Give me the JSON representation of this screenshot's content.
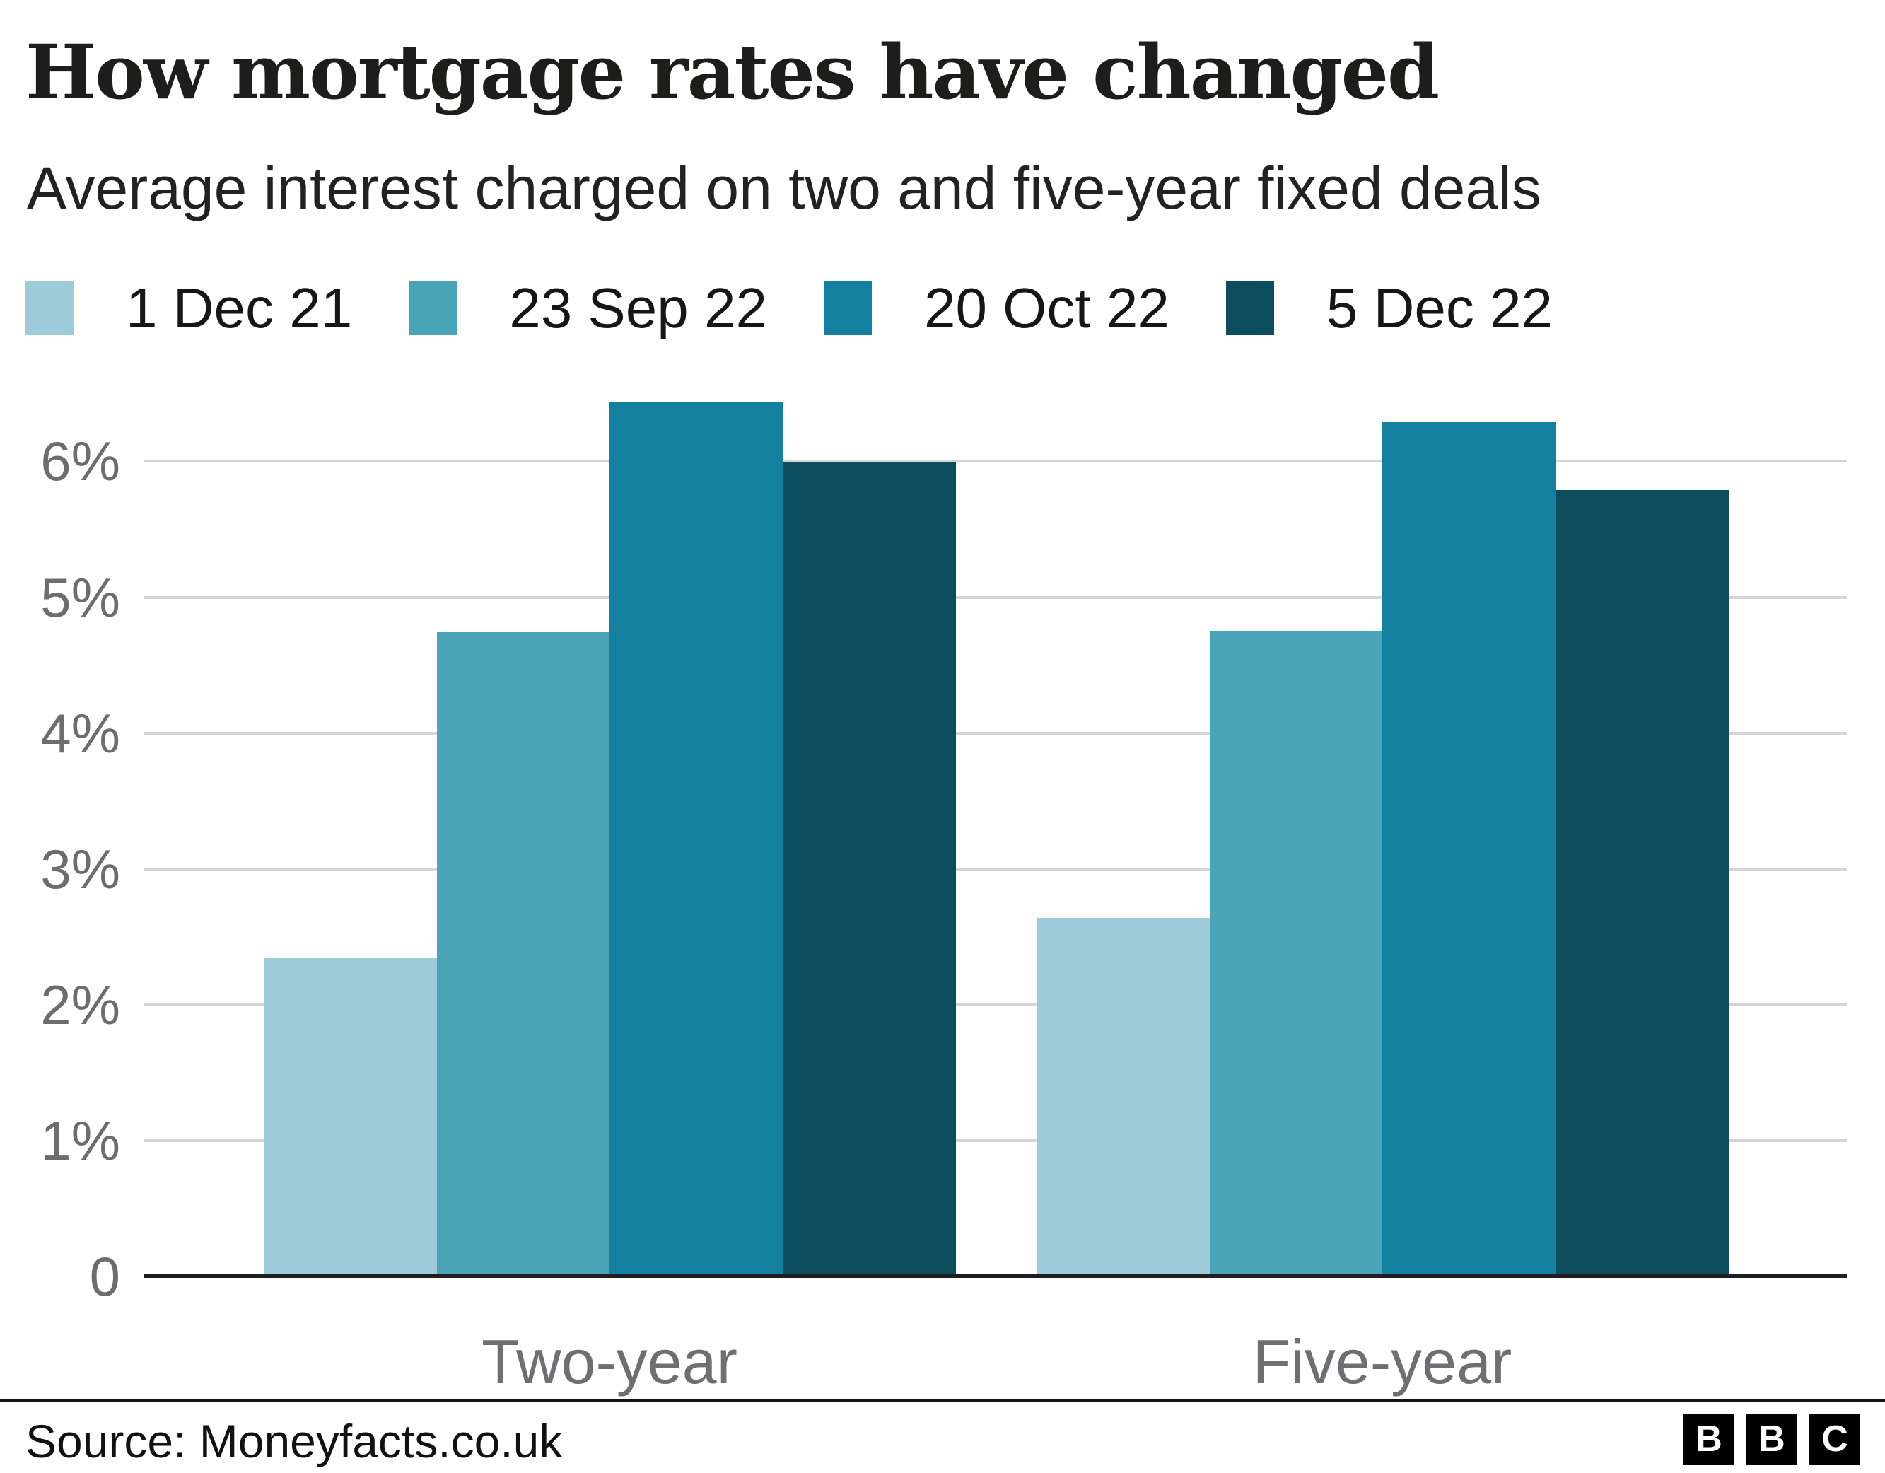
{
  "header": {
    "title": "How mortgage rates have changed",
    "subtitle": "Average interest charged on two and five-year fixed deals"
  },
  "chart_data": {
    "type": "bar",
    "categories": [
      "Two-year",
      "Five-year"
    ],
    "series": [
      {
        "name": "1 Dec 21",
        "color": "#9ecbda",
        "values": [
          2.34,
          2.64
        ]
      },
      {
        "name": "23 Sep 22",
        "color": "#4aa4b7",
        "values": [
          4.74,
          4.75
        ]
      },
      {
        "name": "20 Oct 22",
        "color": "#1380a0",
        "values": [
          6.44,
          6.29
        ]
      },
      {
        "name": "5 Dec 22",
        "color": "#0c4d5e",
        "values": [
          5.99,
          5.79
        ]
      }
    ],
    "y_ticks": [
      {
        "value": 6,
        "label": "6%"
      },
      {
        "value": 5,
        "label": "5%"
      },
      {
        "value": 4,
        "label": "4%"
      },
      {
        "value": 3,
        "label": "3%"
      },
      {
        "value": 2,
        "label": "2%"
      },
      {
        "value": 1,
        "label": "1%"
      },
      {
        "value": 0,
        "label": "0"
      }
    ],
    "ylim": [
      0,
      6.75
    ],
    "ylabel": "",
    "xlabel": "",
    "grid": "horizontal",
    "legend_position": "top"
  },
  "footer": {
    "source": "Source: Moneyfacts.co.uk",
    "logo_letters": [
      "B",
      "B",
      "C"
    ]
  }
}
